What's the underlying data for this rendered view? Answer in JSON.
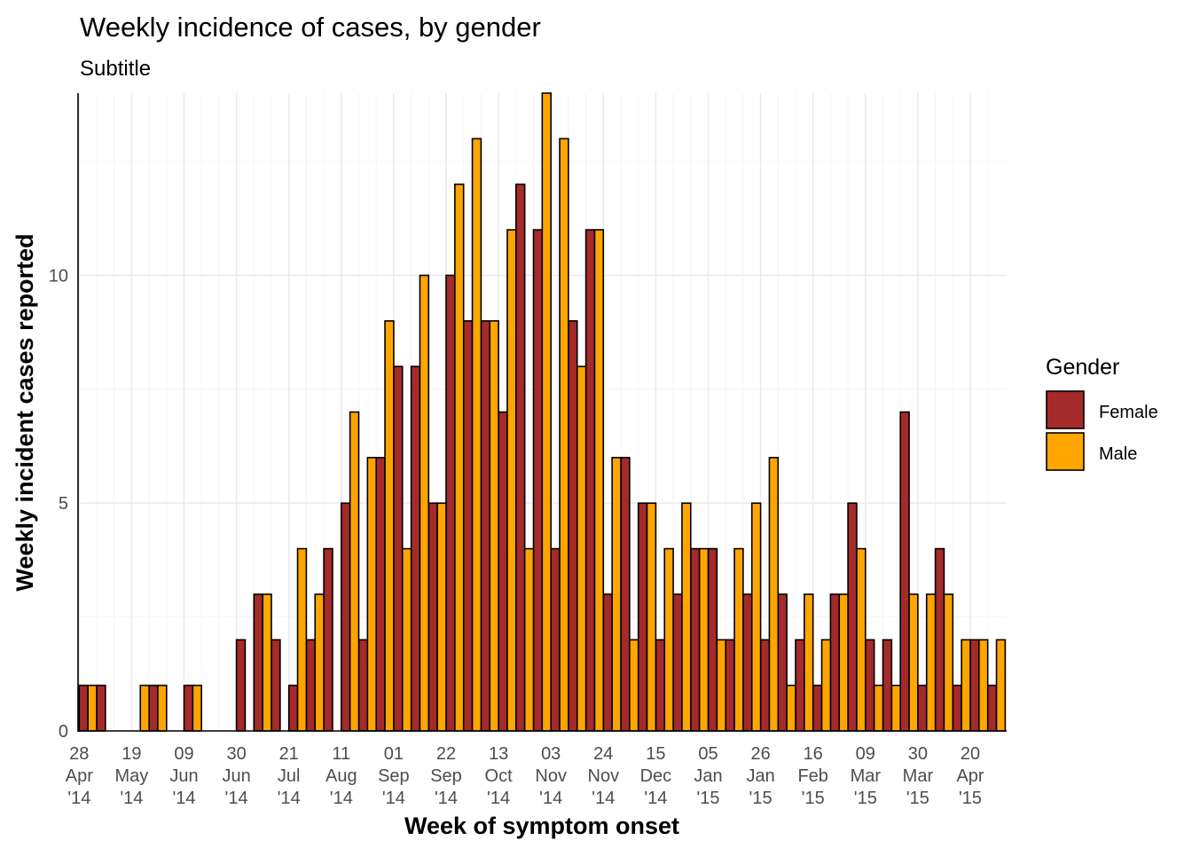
{
  "chart_data": {
    "type": "bar",
    "title": "Weekly incidence of cases, by gender",
    "subtitle": "Subtitle",
    "xlabel": "Week of symptom onset",
    "ylabel": "Weekly incident cases reported",
    "ylim": [
      0,
      14
    ],
    "yticks": [
      0,
      5,
      10
    ],
    "grid": true,
    "legend": {
      "title": "Gender",
      "position": "right",
      "entries": [
        {
          "label": "Female",
          "color": "#a52a2a"
        },
        {
          "label": "Male",
          "color": "#ffa500"
        }
      ]
    },
    "x_tick_labels": [
      {
        "day": "28",
        "month": "Apr",
        "year": "'14"
      },
      {
        "day": "19",
        "month": "May",
        "year": "'14"
      },
      {
        "day": "09",
        "month": "Jun",
        "year": "'14"
      },
      {
        "day": "30",
        "month": "Jun",
        "year": "'14"
      },
      {
        "day": "21",
        "month": "Jul",
        "year": "'14"
      },
      {
        "day": "11",
        "month": "Aug",
        "year": "'14"
      },
      {
        "day": "01",
        "month": "Sep",
        "year": "'14"
      },
      {
        "day": "22",
        "month": "Sep",
        "year": "'14"
      },
      {
        "day": "13",
        "month": "Oct",
        "year": "'14"
      },
      {
        "day": "03",
        "month": "Nov",
        "year": "'14"
      },
      {
        "day": "24",
        "month": "Nov",
        "year": "'14"
      },
      {
        "day": "15",
        "month": "Dec",
        "year": "'14"
      },
      {
        "day": "05",
        "month": "Jan",
        "year": "'15"
      },
      {
        "day": "26",
        "month": "Jan",
        "year": "'15"
      },
      {
        "day": "16",
        "month": "Feb",
        "year": "'15"
      },
      {
        "day": "09",
        "month": "Mar",
        "year": "'15"
      },
      {
        "day": "30",
        "month": "Mar",
        "year": "'15"
      },
      {
        "day": "20",
        "month": "Apr",
        "year": "'15"
      }
    ],
    "weeks": [
      "2014-04-28",
      "2014-05-05",
      "2014-05-12",
      "2014-05-19",
      "2014-05-26",
      "2014-06-02",
      "2014-06-09",
      "2014-06-16",
      "2014-06-23",
      "2014-06-30",
      "2014-07-07",
      "2014-07-14",
      "2014-07-21",
      "2014-07-28",
      "2014-08-04",
      "2014-08-11",
      "2014-08-18",
      "2014-08-25",
      "2014-09-01",
      "2014-09-08",
      "2014-09-15",
      "2014-09-22",
      "2014-09-29",
      "2014-10-06",
      "2014-10-13",
      "2014-10-20",
      "2014-10-27",
      "2014-11-03",
      "2014-11-10",
      "2014-11-17",
      "2014-11-24",
      "2014-12-01",
      "2014-12-08",
      "2014-12-15",
      "2014-12-22",
      "2014-12-29",
      "2015-01-05",
      "2015-01-12",
      "2015-01-19",
      "2015-01-26",
      "2015-02-02",
      "2015-02-09",
      "2015-02-16",
      "2015-02-23",
      "2015-03-02",
      "2015-03-09",
      "2015-03-16",
      "2015-03-23",
      "2015-03-30",
      "2015-04-06",
      "2015-04-13",
      "2015-04-20",
      "2015-04-27"
    ],
    "series": [
      {
        "name": "Female",
        "color": "#a52a2a",
        "values": [
          1,
          1,
          0,
          0,
          1,
          0,
          1,
          0,
          0,
          2,
          3,
          2,
          1,
          2,
          4,
          5,
          2,
          6,
          8,
          8,
          5,
          10,
          9,
          9,
          7,
          12,
          11,
          4,
          9,
          11,
          3,
          6,
          5,
          2,
          3,
          4,
          4,
          2,
          3,
          2,
          3,
          2,
          1,
          3,
          5,
          2,
          2,
          7,
          1,
          4,
          1,
          2,
          1
        ]
      },
      {
        "name": "Male",
        "color": "#ffa500",
        "values": [
          1,
          0,
          0,
          1,
          1,
          0,
          1,
          0,
          0,
          0,
          3,
          0,
          4,
          3,
          0,
          7,
          6,
          9,
          4,
          10,
          5,
          12,
          13,
          9,
          11,
          4,
          14,
          13,
          8,
          11,
          6,
          2,
          5,
          4,
          5,
          4,
          2,
          4,
          5,
          6,
          1,
          3,
          2,
          3,
          4,
          1,
          1,
          3,
          3,
          3,
          2,
          2,
          2
        ]
      }
    ]
  }
}
